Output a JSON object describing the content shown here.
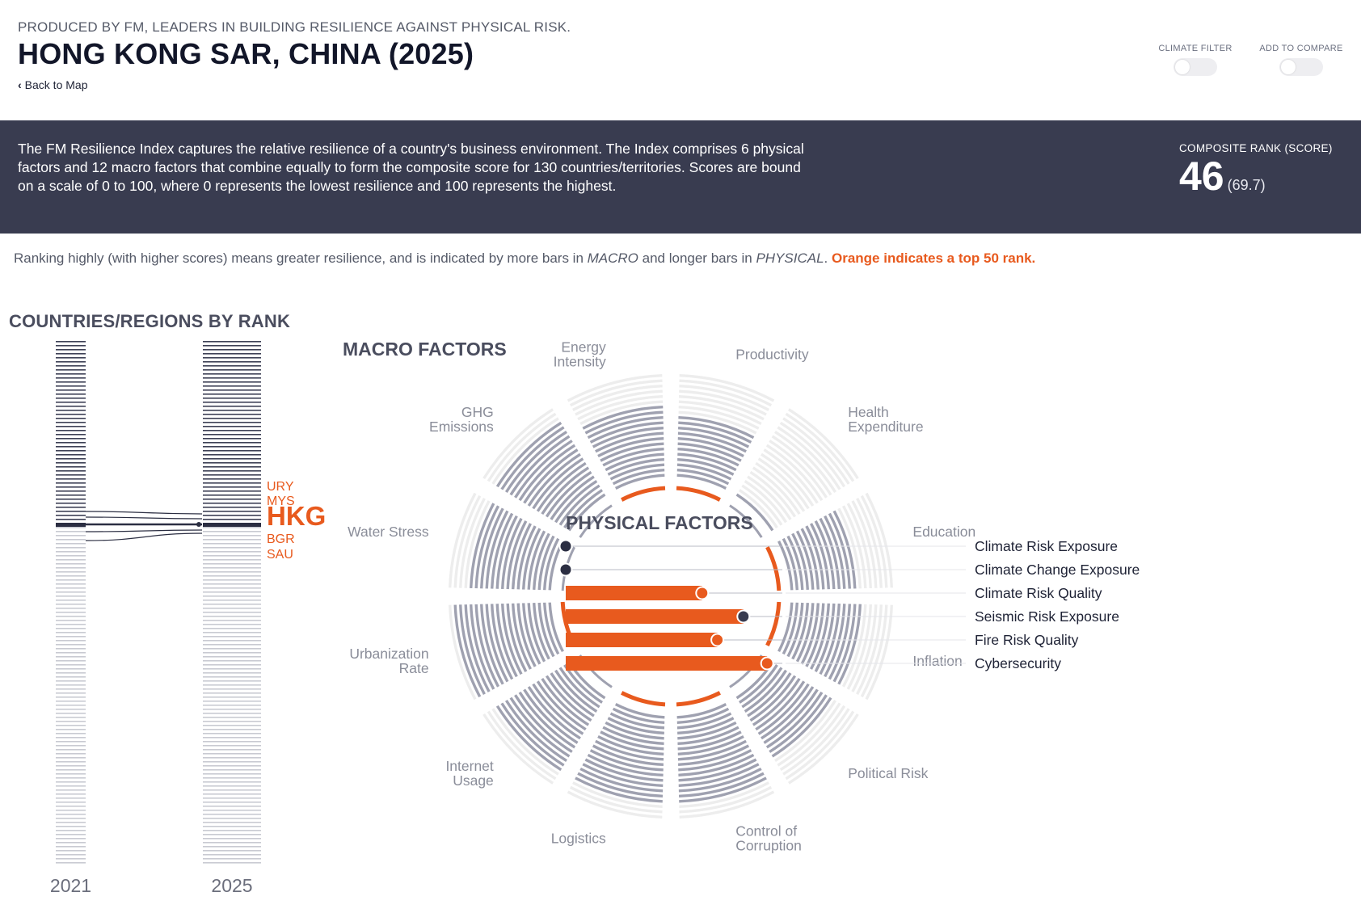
{
  "header": {
    "tagline": "PRODUCED BY FM, LEADERS IN BUILDING RESILIENCE AGAINST PHYSICAL RISK.",
    "title": "HONG KONG SAR, CHINA (2025)",
    "back_link": "Back to Map",
    "climate_filter_label": "CLIMATE FILTER",
    "add_to_compare_label": "ADD TO COMPARE",
    "climate_filter_on": false,
    "add_to_compare_on": false
  },
  "banner": {
    "description": "The FM Resilience Index captures the relative resilience of a country's business environment. The Index comprises 6 physical factors and 12 macro factors that combine equally to form the composite score for 130 countries/territories. Scores are bound on a scale of 0 to 100, where 0 represents the lowest resilience and 100 represents the highest.",
    "rank_label": "COMPOSITE RANK (SCORE)",
    "rank": "46",
    "score": "(69.7)"
  },
  "note": {
    "part1": "Ranking highly (with higher scores) means greater resilience, and is indicated by more bars in ",
    "macro": "MACRO",
    "part2": " and longer bars in ",
    "physical": "PHYSICAL",
    "part3": ". ",
    "highlight": "Orange indicates a top 50 rank."
  },
  "rank_chart": {
    "heading": "COUNTRIES/REGIONS BY RANK",
    "total_countries": 130,
    "years": [
      "2021",
      "2025"
    ],
    "rank_2021": 46,
    "rank_2025": 46,
    "neighbors": [
      "URY",
      "MYS",
      "HKG",
      "BGR",
      "SAU"
    ],
    "current_code": "HKG"
  },
  "macro": {
    "heading": "MACRO FACTORS",
    "factors": [
      {
        "name": "Productivity",
        "lines": [
          "Productivity"
        ],
        "bars": 12,
        "top50": true
      },
      {
        "name": "Health Expenditure",
        "lines": [
          "Health",
          "Expenditure"
        ],
        "bars": 1,
        "top50": false
      },
      {
        "name": "Education",
        "lines": [
          "Education"
        ],
        "bars": 13,
        "top50": true
      },
      {
        "name": "Inflation",
        "lines": [
          "Inflation"
        ],
        "bars": 14,
        "top50": true
      },
      {
        "name": "Political Risk",
        "lines": [
          "Political Risk"
        ],
        "bars": 14,
        "top50": false
      },
      {
        "name": "Control of Corruption",
        "lines": [
          "Control of",
          "Corruption"
        ],
        "bars": 17,
        "top50": true
      },
      {
        "name": "Logistics",
        "lines": [
          "Logistics"
        ],
        "bars": 17,
        "top50": true
      },
      {
        "name": "Internet Usage",
        "lines": [
          "Internet",
          "Usage"
        ],
        "bars": 17,
        "top50": false
      },
      {
        "name": "Urbanization Rate",
        "lines": [
          "Urbanization",
          "Rate"
        ],
        "bars": 19,
        "top50": true
      },
      {
        "name": "Water Stress",
        "lines": [
          "Water Stress"
        ],
        "bars": 16,
        "top50": false
      },
      {
        "name": "GHG Emissions",
        "lines": [
          "GHG",
          "Emissions"
        ],
        "bars": 17,
        "top50": false
      },
      {
        "name": "Energy Intensity",
        "lines": [
          "Energy",
          "Intensity"
        ],
        "bars": 14,
        "top50": true
      }
    ]
  },
  "physical": {
    "heading": "PHYSICAL FACTORS",
    "factors": [
      {
        "name": "Climate Risk Exposure",
        "score": 0,
        "top50": false
      },
      {
        "name": "Climate Change Exposure",
        "score": 0,
        "top50": false
      },
      {
        "name": "Climate Risk Quality",
        "score": 63,
        "top50": true
      },
      {
        "name": "Seismic Risk Exposure",
        "score": 82,
        "top50": true
      },
      {
        "name": "Fire Risk Quality",
        "score": 70,
        "top50": true
      },
      {
        "name": "Cybersecurity",
        "score": 93,
        "top50": true
      }
    ]
  },
  "colors": {
    "accent": "#e85a1e",
    "dark": "#393c50",
    "bar_grey": "#9fa1b0",
    "bar_light": "#ededed",
    "label_grey": "#8a8d99"
  }
}
